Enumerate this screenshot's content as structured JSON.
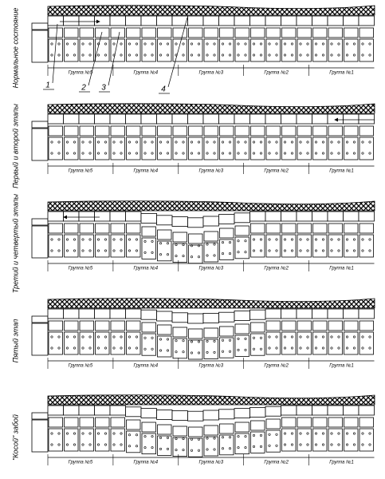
{
  "panels": [
    {
      "label": "Нормальное состояние",
      "groups": [
        "Группа №5",
        "Группа №4",
        "Группа №3",
        "Группа №2",
        "Группа №1"
      ]
    },
    {
      "label": "Первый и второй этапы",
      "groups": [
        "Группа №5",
        "Группа №4",
        "Группа №3",
        "Группа №2",
        "Группа №1"
      ]
    },
    {
      "label": "Третий и четвертый этапы",
      "groups": [
        "Группа №5",
        "Группа №4",
        "Группа №3",
        "Группа №2",
        "Группа №1"
      ]
    },
    {
      "label": "Пятый этап",
      "groups": [
        "Группа №5",
        "Группа №4",
        "Группа №3",
        "Группа №2",
        "Группа №1"
      ]
    },
    {
      "label": "\"Косой\" забой",
      "groups": [
        "Группа №5",
        "Группа №4",
        "Группа №3",
        "Группа №2",
        "Группа №1"
      ]
    }
  ],
  "callouts": [
    "1",
    "2",
    "3",
    "4"
  ]
}
